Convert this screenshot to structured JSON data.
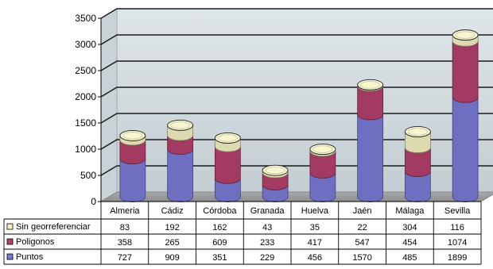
{
  "chart_data": {
    "type": "bar",
    "stacked": true,
    "style": "3d-cylinder",
    "categories": [
      "Almeria",
      "Cádiz",
      "Córdoba",
      "Granada",
      "Huelva",
      "Jaén",
      "Málaga",
      "Sevilla"
    ],
    "series": [
      {
        "name": "Puntos",
        "values": [
          727,
          909,
          351,
          229,
          456,
          1570,
          485,
          1899
        ],
        "color": "#7b7bd6"
      },
      {
        "name": "Poligonos",
        "values": [
          358,
          265,
          609,
          233,
          417,
          547,
          454,
          1074
        ],
        "color": "#b4406c"
      },
      {
        "name": "Sin georreferenciar",
        "values": [
          83,
          192,
          162,
          43,
          35,
          22,
          304,
          116
        ],
        "color": "#f6f2c2"
      }
    ],
    "table_rows_order": [
      "Sin georreferenciar",
      "Poligonos",
      "Puntos"
    ],
    "yticks": [
      0,
      500,
      1000,
      1500,
      2000,
      2500,
      3000,
      3500
    ],
    "ylim": [
      0,
      3500
    ],
    "grid": true,
    "legend": "data-table-below"
  }
}
